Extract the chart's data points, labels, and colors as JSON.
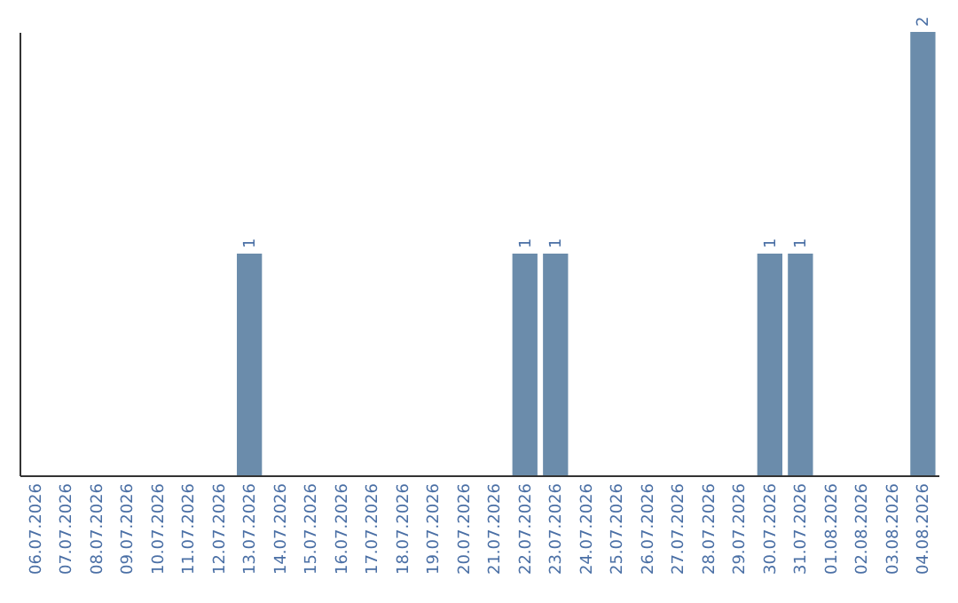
{
  "chart_data": {
    "type": "bar",
    "categories": [
      "06.07.2026",
      "07.07.2026",
      "08.07.2026",
      "09.07.2026",
      "10.07.2026",
      "11.07.2026",
      "12.07.2026",
      "13.07.2026",
      "14.07.2026",
      "15.07.2026",
      "16.07.2026",
      "17.07.2026",
      "18.07.2026",
      "19.07.2026",
      "20.07.2026",
      "21.07.2026",
      "22.07.2026",
      "23.07.2026",
      "24.07.2026",
      "25.07.2026",
      "26.07.2026",
      "27.07.2026",
      "28.07.2026",
      "29.07.2026",
      "30.07.2026",
      "31.07.2026",
      "01.08.2026",
      "02.08.2026",
      "03.08.2026",
      "04.08.2026"
    ],
    "values": [
      0,
      0,
      0,
      0,
      0,
      0,
      0,
      1,
      0,
      0,
      0,
      0,
      0,
      0,
      0,
      0,
      1,
      1,
      0,
      0,
      0,
      0,
      0,
      0,
      1,
      1,
      0,
      0,
      0,
      2
    ],
    "color": "#6b8cab",
    "value_labels": [
      null,
      null,
      null,
      null,
      null,
      null,
      null,
      "1",
      null,
      null,
      null,
      null,
      null,
      null,
      null,
      null,
      "1",
      "1",
      null,
      null,
      null,
      null,
      null,
      null,
      "1",
      "1",
      null,
      null,
      null,
      "2"
    ]
  }
}
